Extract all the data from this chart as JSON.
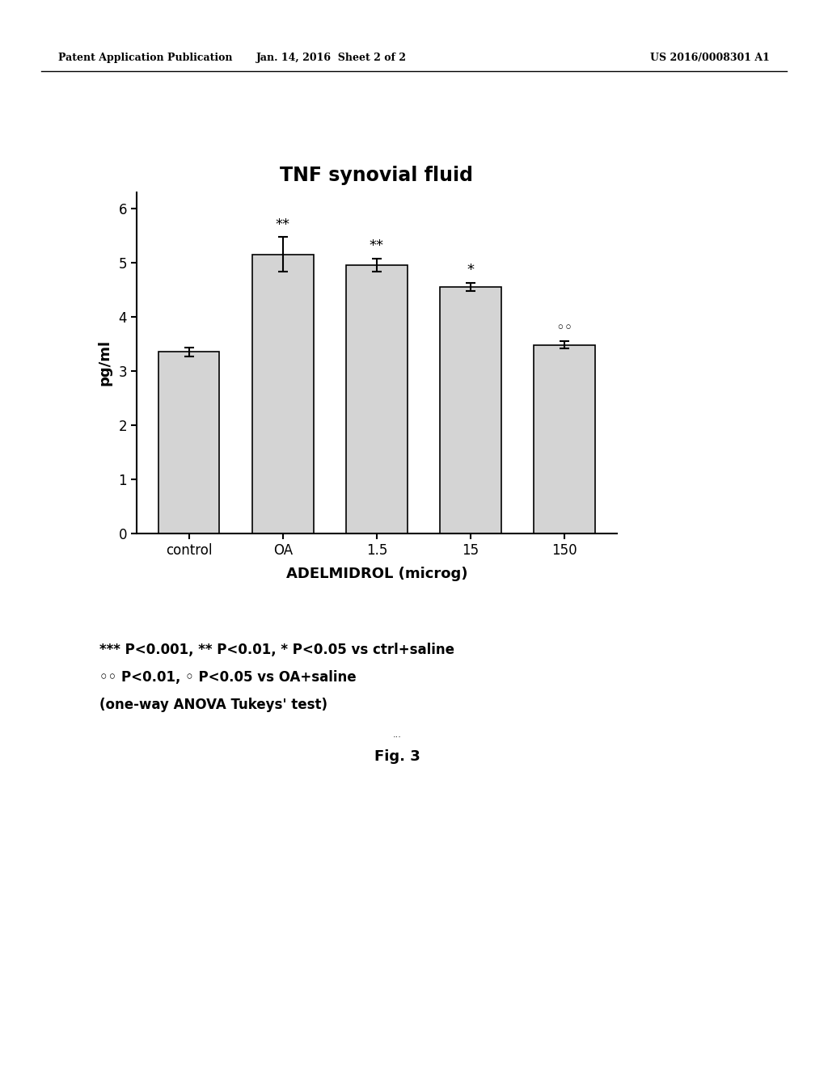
{
  "title": "TNF synovial fluid",
  "categories": [
    "control",
    "OA",
    "1.5",
    "15",
    "150"
  ],
  "values": [
    3.35,
    5.15,
    4.95,
    4.55,
    3.48
  ],
  "errors": [
    0.08,
    0.32,
    0.12,
    0.08,
    0.07
  ],
  "xlabel": "ADELMIDROL (microg)",
  "ylabel": "pg/ml",
  "ylim": [
    0,
    6.3
  ],
  "yticks": [
    0,
    1,
    2,
    3,
    4,
    5,
    6
  ],
  "bar_color": "#d4d4d4",
  "bar_edgecolor": "#000000",
  "background_color": "#ffffff",
  "significance_labels": [
    "",
    "**",
    "**",
    "*",
    "◦◦"
  ],
  "header_left": "Patent Application Publication",
  "header_mid": "Jan. 14, 2016  Sheet 2 of 2",
  "header_right": "US 2016/0008301 A1",
  "footer_line1": "*** P<0.001, ** P<0.01, * P<0.05 vs ctrl+saline",
  "footer_line2": "◦◦ P<0.01, ◦ P<0.05 vs OA+saline",
  "footer_line3": "(one-way ANOVA Tukeys' test)",
  "fig_label": "Fig. 3",
  "title_fontsize": 17,
  "axis_fontsize": 13,
  "tick_fontsize": 12,
  "header_fontsize": 9,
  "footer_fontsize": 12
}
